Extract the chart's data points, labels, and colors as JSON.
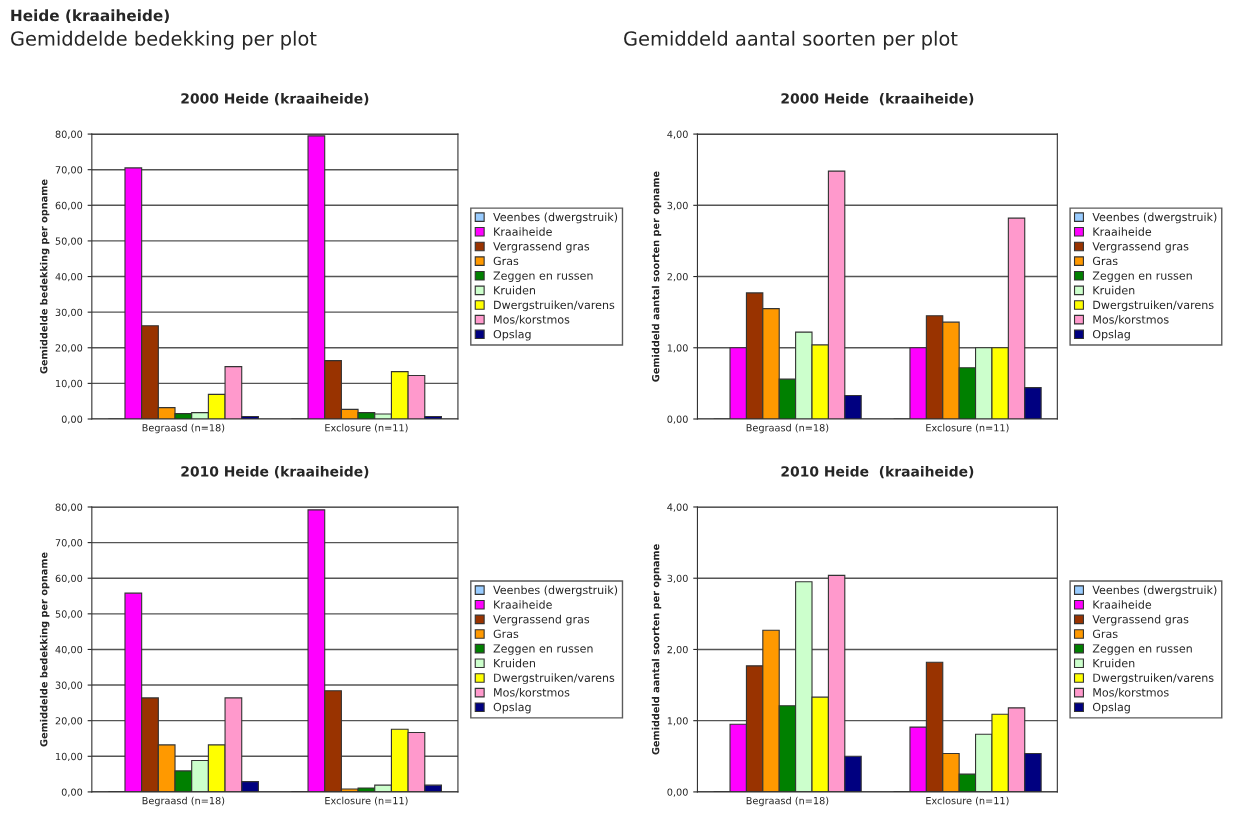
{
  "chart_data": [
    {
      "type": "bar",
      "title": "2000 Heide (kraaiheide)",
      "ylabel": "Gemiddelde bedekking per opname",
      "annotations": [
        "Heide (kraaiheide)",
        "Gemiddelde bedekking per plot"
      ],
      "categories": [
        "Begraasd (n=18)",
        "Exclosure (n=11)"
      ],
      "series": [
        {
          "name": "Veenbes (dwergstruik)",
          "color": "#99ccff",
          "values": [
            0,
            0
          ]
        },
        {
          "name": "Kraaiheide",
          "color": "#ff00ff",
          "values": [
            70.5,
            79.5
          ]
        },
        {
          "name": "Vergrassend gras",
          "color": "#993300",
          "values": [
            26.2,
            16.4
          ]
        },
        {
          "name": "Gras",
          "color": "#ff9900",
          "values": [
            3.2,
            2.7
          ]
        },
        {
          "name": "Zeggen en russen",
          "color": "#008000",
          "values": [
            1.5,
            1.8
          ]
        },
        {
          "name": "Kruiden",
          "color": "#ccffcc",
          "values": [
            1.8,
            1.4
          ]
        },
        {
          "name": "Dwergstruiken/varens",
          "color": "#ffff00",
          "values": [
            6.9,
            13.3
          ]
        },
        {
          "name": "Mos/korstmos",
          "color": "#ff99cc",
          "values": [
            14.7,
            12.2
          ]
        },
        {
          "name": "Opslag",
          "color": "#000080",
          "values": [
            0.7,
            0.7
          ]
        }
      ],
      "ylim": [
        0,
        80
      ],
      "yticks": [
        {
          "value": 0,
          "label": "0,00"
        },
        {
          "value": 10,
          "label": "10,00"
        },
        {
          "value": 20,
          "label": "20,00"
        },
        {
          "value": 30,
          "label": "30,00"
        },
        {
          "value": 40,
          "label": "40,00"
        },
        {
          "value": 50,
          "label": "50,00"
        },
        {
          "value": 60,
          "label": "60,00"
        },
        {
          "value": 70,
          "label": "70,00"
        },
        {
          "value": 80,
          "label": "80,00"
        }
      ],
      "grid": "y",
      "legend": "right"
    },
    {
      "type": "bar",
      "title": "2000 Heide  (kraaiheide)",
      "ylabel": "Gemiddeld aantal soorten per opname",
      "annotations": [
        "Gemiddeld aantal soorten per plot"
      ],
      "categories": [
        "Begraasd (n=18)",
        "Exclosure (n=11)"
      ],
      "series": [
        {
          "name": "Veenbes (dwergstruik)",
          "color": "#99ccff",
          "values": [
            0,
            0
          ]
        },
        {
          "name": "Kraaiheide",
          "color": "#ff00ff",
          "values": [
            1.0,
            1.0
          ]
        },
        {
          "name": "Vergrassend gras",
          "color": "#993300",
          "values": [
            1.77,
            1.45
          ]
        },
        {
          "name": "Gras",
          "color": "#ff9900",
          "values": [
            1.55,
            1.36
          ]
        },
        {
          "name": "Zeggen en russen",
          "color": "#008000",
          "values": [
            0.56,
            0.72
          ]
        },
        {
          "name": "Kruiden",
          "color": "#ccffcc",
          "values": [
            1.22,
            1.0
          ]
        },
        {
          "name": "Dwergstruiken/varens",
          "color": "#ffff00",
          "values": [
            1.04,
            1.0
          ]
        },
        {
          "name": "Mos/korstmos",
          "color": "#ff99cc",
          "values": [
            3.48,
            2.82
          ]
        },
        {
          "name": "Opslag",
          "color": "#000080",
          "values": [
            0.33,
            0.44
          ]
        }
      ],
      "ylim": [
        0,
        4
      ],
      "yticks": [
        {
          "value": 0,
          "label": "0,00"
        },
        {
          "value": 1,
          "label": "1,00"
        },
        {
          "value": 2,
          "label": "2,00"
        },
        {
          "value": 3,
          "label": "3,00"
        },
        {
          "value": 4,
          "label": "4,00"
        }
      ],
      "grid": "y",
      "legend": "right"
    },
    {
      "type": "bar",
      "title": "2010 Heide (kraaiheide)",
      "ylabel": "Gemiddelde bedekking per opname",
      "categories": [
        "Begraasd (n=18)",
        "Exclosure (n=11)"
      ],
      "series": [
        {
          "name": "Veenbes (dwergstruik)",
          "color": "#99ccff",
          "values": [
            0,
            0
          ]
        },
        {
          "name": "Kraaiheide",
          "color": "#ff00ff",
          "values": [
            55.8,
            79.2
          ]
        },
        {
          "name": "Vergrassend gras",
          "color": "#993300",
          "values": [
            26.4,
            28.4
          ]
        },
        {
          "name": "Gras",
          "color": "#ff9900",
          "values": [
            13.2,
            0.8
          ]
        },
        {
          "name": "Zeggen en russen",
          "color": "#008000",
          "values": [
            5.9,
            1.1
          ]
        },
        {
          "name": "Kruiden",
          "color": "#ccffcc",
          "values": [
            8.8,
            1.9
          ]
        },
        {
          "name": "Dwergstruiken/varens",
          "color": "#ffff00",
          "values": [
            13.2,
            17.6
          ]
        },
        {
          "name": "Mos/korstmos",
          "color": "#ff99cc",
          "values": [
            26.4,
            16.7
          ]
        },
        {
          "name": "Opslag",
          "color": "#000080",
          "values": [
            2.9,
            1.9
          ]
        }
      ],
      "ylim": [
        0,
        80
      ],
      "yticks": [
        {
          "value": 0,
          "label": "0,00"
        },
        {
          "value": 10,
          "label": "10,00"
        },
        {
          "value": 20,
          "label": "20,00"
        },
        {
          "value": 30,
          "label": "30,00"
        },
        {
          "value": 40,
          "label": "40,00"
        },
        {
          "value": 50,
          "label": "50,00"
        },
        {
          "value": 60,
          "label": "60,00"
        },
        {
          "value": 70,
          "label": "70,00"
        },
        {
          "value": 80,
          "label": "80,00"
        }
      ],
      "grid": "y",
      "legend": "right"
    },
    {
      "type": "bar",
      "title": "2010 Heide  (kraaiheide)",
      "ylabel": "Gemiddeld aantal soorten per opname",
      "categories": [
        "Begraasd (n=18)",
        "Exclosure (n=11)"
      ],
      "series": [
        {
          "name": "Veenbes (dwergstruik)",
          "color": "#99ccff",
          "values": [
            0,
            0
          ]
        },
        {
          "name": "Kraaiheide",
          "color": "#ff00ff",
          "values": [
            0.95,
            0.91
          ]
        },
        {
          "name": "Vergrassend gras",
          "color": "#993300",
          "values": [
            1.77,
            1.82
          ]
        },
        {
          "name": "Gras",
          "color": "#ff9900",
          "values": [
            2.27,
            0.54
          ]
        },
        {
          "name": "Zeggen en russen",
          "color": "#008000",
          "values": [
            1.21,
            0.25
          ]
        },
        {
          "name": "Kruiden",
          "color": "#ccffcc",
          "values": [
            2.95,
            0.81
          ]
        },
        {
          "name": "Dwergstruiken/varens",
          "color": "#ffff00",
          "values": [
            1.33,
            1.09
          ]
        },
        {
          "name": "Mos/korstmos",
          "color": "#ff99cc",
          "values": [
            3.04,
            1.18
          ]
        },
        {
          "name": "Opslag",
          "color": "#000080",
          "values": [
            0.5,
            0.54
          ]
        }
      ],
      "ylim": [
        0,
        4
      ],
      "yticks": [
        {
          "value": 0,
          "label": "0,00"
        },
        {
          "value": 1,
          "label": "1,00"
        },
        {
          "value": 2,
          "label": "2,00"
        },
        {
          "value": 3,
          "label": "3,00"
        },
        {
          "value": 4,
          "label": "4,00"
        }
      ],
      "grid": "y",
      "legend": "right"
    }
  ]
}
